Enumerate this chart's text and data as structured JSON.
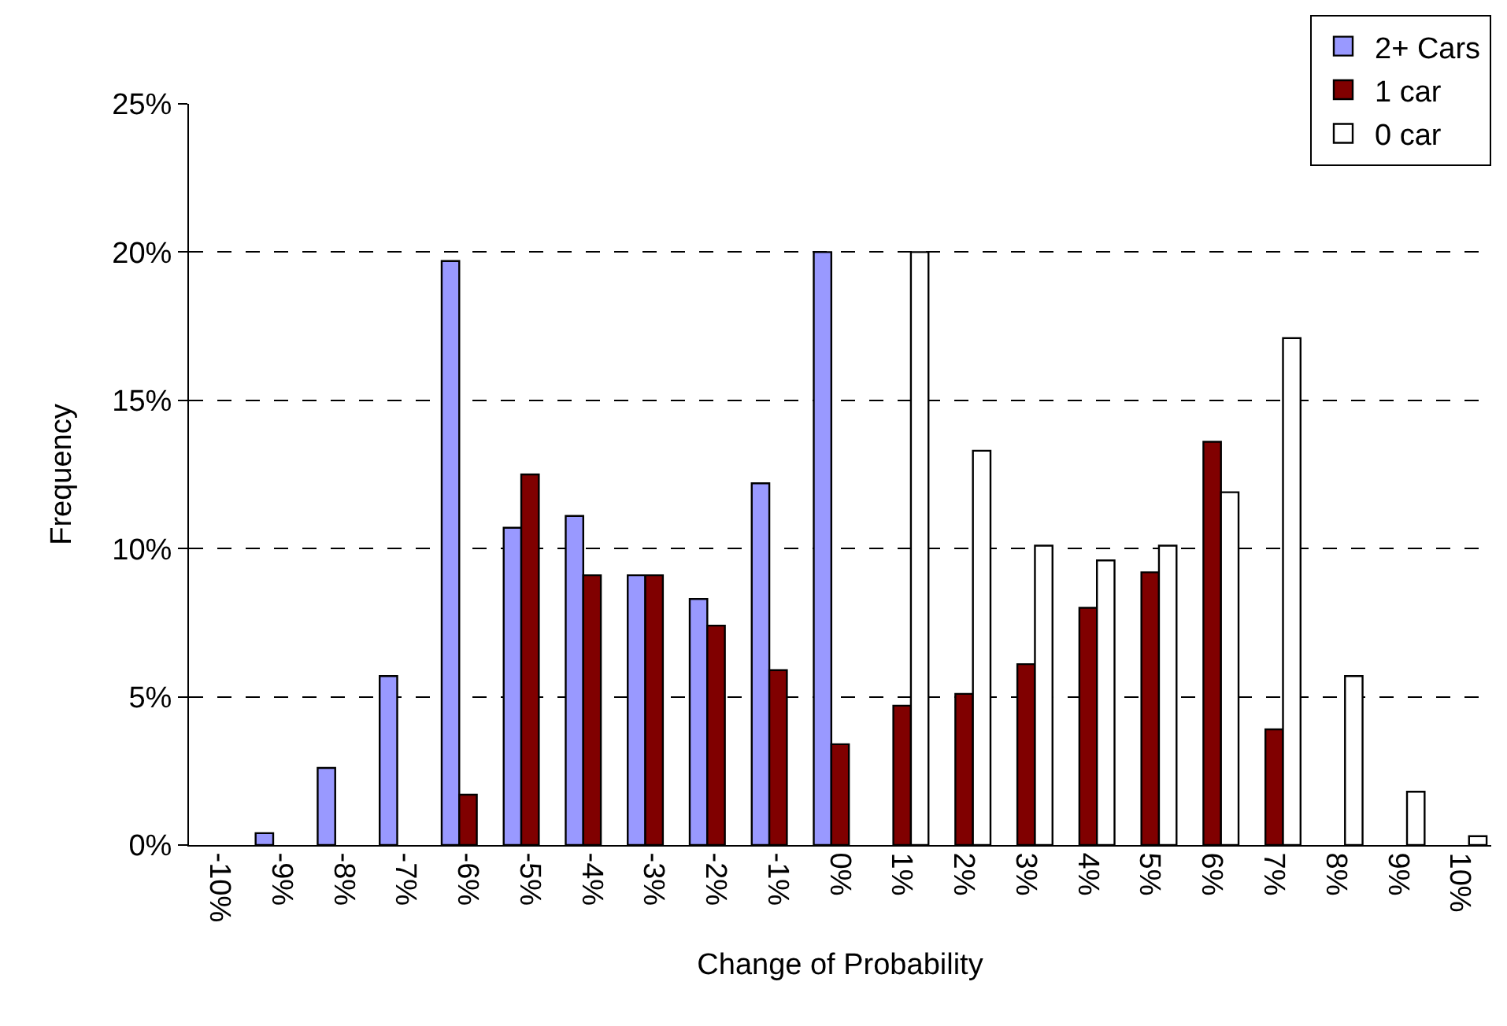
{
  "chart_data": {
    "type": "bar",
    "xlabel": "Change of Probability",
    "ylabel": "Frequency",
    "categories": [
      "-10%",
      "-9%",
      "-8%",
      "-7%",
      "-6%",
      "-5%",
      "-4%",
      "-3%",
      "-2%",
      "-1%",
      "0%",
      "1%",
      "2%",
      "3%",
      "4%",
      "5%",
      "6%",
      "7%",
      "8%",
      "9%",
      "10%"
    ],
    "series": [
      {
        "name": "2+ Cars",
        "color": "#9999ff",
        "values": [
          null,
          0.4,
          2.6,
          5.7,
          19.7,
          10.7,
          11.1,
          9.1,
          8.3,
          12.2,
          20.0,
          null,
          null,
          null,
          null,
          null,
          null,
          null,
          null,
          null,
          null
        ]
      },
      {
        "name": "1 car",
        "color": "#800000",
        "values": [
          null,
          null,
          null,
          null,
          1.7,
          12.5,
          9.1,
          9.1,
          7.4,
          5.9,
          3.4,
          4.7,
          5.1,
          6.1,
          8.0,
          9.2,
          13.6,
          3.9,
          null,
          null,
          null
        ]
      },
      {
        "name": "0 car",
        "color": "#ffffff",
        "values": [
          null,
          null,
          null,
          null,
          null,
          null,
          null,
          null,
          null,
          null,
          null,
          20.0,
          13.3,
          10.1,
          9.6,
          10.1,
          11.9,
          17.1,
          5.7,
          1.8,
          0.3
        ]
      }
    ],
    "ylim": [
      0,
      25
    ],
    "yticks": [
      {
        "value": 0,
        "label": "0%"
      },
      {
        "value": 5,
        "label": "5%"
      },
      {
        "value": 10,
        "label": "10%"
      },
      {
        "value": 15,
        "label": "15%"
      },
      {
        "value": 20,
        "label": "20%"
      },
      {
        "value": 25,
        "label": "25%"
      }
    ],
    "grid": "y",
    "legend": "top right"
  }
}
